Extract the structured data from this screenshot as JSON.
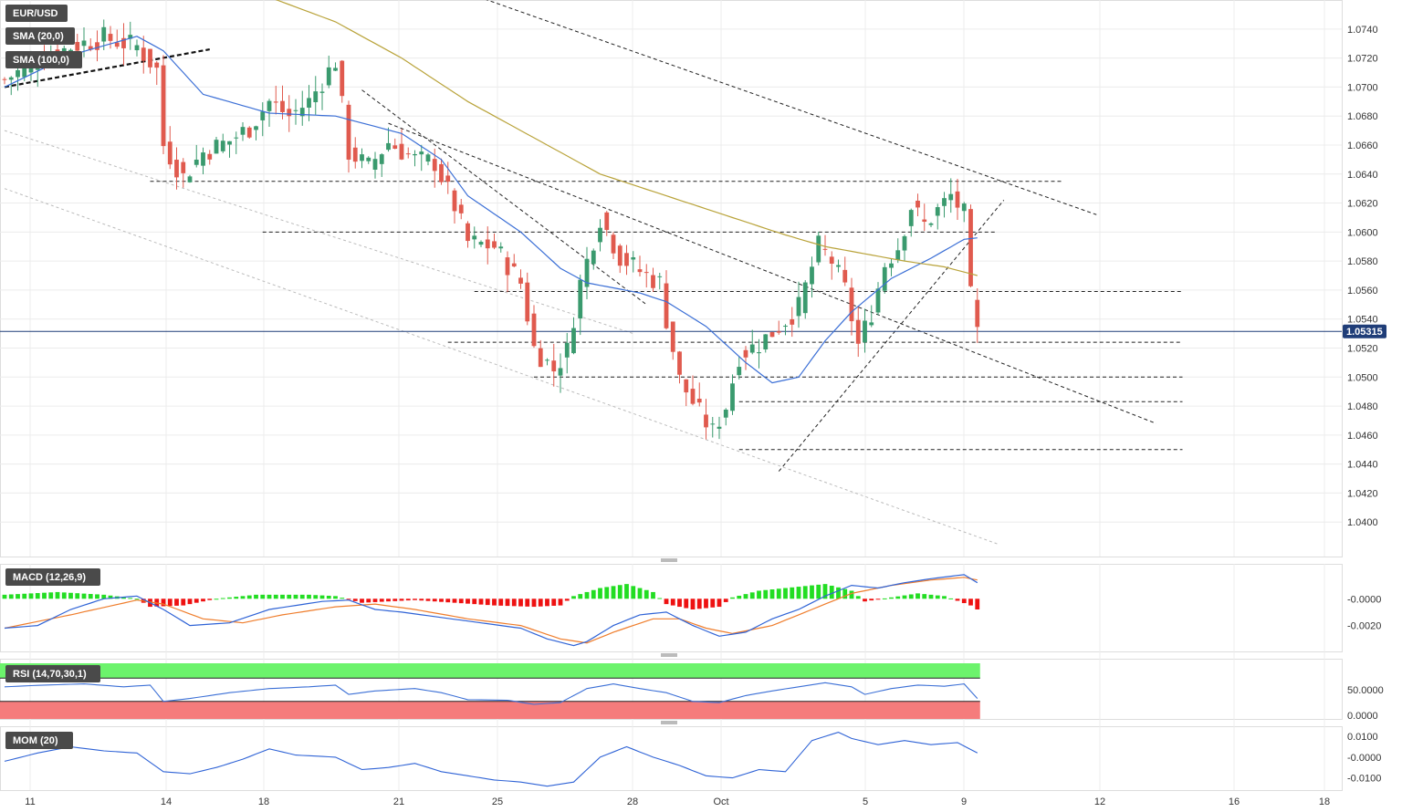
{
  "symbol": "EUR/USD",
  "colors": {
    "bull": "#3a9a6e",
    "bear": "#e05a4e",
    "sma20": "#3b6fd6",
    "sma100": "#b9a33a",
    "macd_line": "#2f63d6",
    "signal_line": "#ef7d2c",
    "hist_pos": "#22dd22",
    "hist_neg": "#ee1111",
    "rsi_line": "#3b6fd6",
    "rsi_over": "#6cf36c",
    "rsi_under": "#f57c7c",
    "mom_line": "#2f63d6",
    "tag_bg": "#4a4a4a",
    "price_tag_bg": "#1f3d78"
  },
  "chart_data": [
    {
      "type": "candlestick",
      "panel": "price",
      "title": "EUR/USD",
      "indicators": [
        "SMA (20,0)",
        "SMA (100,0)"
      ],
      "current_price_label": "1.05315",
      "current_price": 1.05315,
      "ylim": [
        1.038,
        1.0755
      ],
      "y_ticks": [
        "1.0740",
        "1.0720",
        "1.0700",
        "1.0680",
        "1.0660",
        "1.0640",
        "1.0620",
        "1.0600",
        "1.0580",
        "1.0560",
        "1.0540",
        "1.0520",
        "1.0500",
        "1.0480",
        "1.0460",
        "1.0440",
        "1.0420",
        "1.0400"
      ],
      "x_tick_labels": [
        "11",
        "14",
        "18",
        "21",
        "25",
        "28",
        "Oct",
        "5",
        "9",
        "12",
        "16",
        "18"
      ],
      "grid": true,
      "candle_count": 148,
      "price_anchors": [
        [
          0,
          1.0705
        ],
        [
          5,
          1.0718
        ],
        [
          10,
          1.0728
        ],
        [
          15,
          1.0734
        ],
        [
          20,
          1.0728
        ],
        [
          23,
          1.0712
        ],
        [
          24,
          1.066
        ],
        [
          27,
          1.0638
        ],
        [
          30,
          1.0655
        ],
        [
          34,
          1.0663
        ],
        [
          37,
          1.0672
        ],
        [
          40,
          1.069
        ],
        [
          43,
          1.068
        ],
        [
          46,
          1.069
        ],
        [
          50,
          1.0718
        ],
        [
          52,
          1.0655
        ],
        [
          55,
          1.0645
        ],
        [
          58,
          1.0662
        ],
        [
          62,
          1.065
        ],
        [
          65,
          1.0648
        ],
        [
          68,
          1.0618
        ],
        [
          70,
          1.0593
        ],
        [
          74,
          1.059
        ],
        [
          78,
          1.0565
        ],
        [
          80,
          1.052
        ],
        [
          83,
          1.0505
        ],
        [
          85,
          1.0518
        ],
        [
          87,
          1.0565
        ],
        [
          90,
          1.061
        ],
        [
          93,
          1.0583
        ],
        [
          96,
          1.0573
        ],
        [
          99,
          1.0565
        ],
        [
          100,
          1.054
        ],
        [
          102,
          1.0498
        ],
        [
          105,
          1.0475
        ],
        [
          107,
          1.0462
        ],
        [
          109,
          1.048
        ],
        [
          111,
          1.0515
        ],
        [
          114,
          1.0523
        ],
        [
          117,
          1.0535
        ],
        [
          120,
          1.0548
        ],
        [
          123,
          1.059
        ],
        [
          125,
          1.058
        ],
        [
          127,
          1.056
        ],
        [
          129,
          1.0522
        ],
        [
          131,
          1.0545
        ],
        [
          133,
          1.0578
        ],
        [
          135,
          1.059
        ],
        [
          137,
          1.0618
        ],
        [
          139,
          1.0605
        ],
        [
          141,
          1.0615
        ],
        [
          143,
          1.0625
        ],
        [
          145,
          1.0612
        ],
        [
          146,
          1.0555
        ],
        [
          147,
          1.053
        ]
      ],
      "sma20_anchors": [
        [
          0,
          1.07
        ],
        [
          10,
          1.0722
        ],
        [
          20,
          1.0735
        ],
        [
          24,
          1.0725
        ],
        [
          30,
          1.0695
        ],
        [
          40,
          1.0682
        ],
        [
          50,
          1.068
        ],
        [
          60,
          1.0668
        ],
        [
          66,
          1.065
        ],
        [
          70,
          1.0625
        ],
        [
          78,
          1.06
        ],
        [
          84,
          1.0575
        ],
        [
          88,
          1.0565
        ],
        [
          96,
          1.0558
        ],
        [
          100,
          1.0552
        ],
        [
          106,
          1.0535
        ],
        [
          112,
          1.051
        ],
        [
          116,
          1.0496
        ],
        [
          120,
          1.05
        ],
        [
          124,
          1.0525
        ],
        [
          128,
          1.0545
        ],
        [
          134,
          1.0568
        ],
        [
          140,
          1.0582
        ],
        [
          145,
          1.0595
        ],
        [
          147,
          1.0596
        ]
      ],
      "sma100_anchors": [
        [
          40,
          1.0762
        ],
        [
          50,
          1.0745
        ],
        [
          60,
          1.072
        ],
        [
          70,
          1.069
        ],
        [
          80,
          1.0665
        ],
        [
          90,
          1.064
        ],
        [
          100,
          1.0625
        ],
        [
          110,
          1.061
        ],
        [
          118,
          1.0598
        ],
        [
          124,
          1.059
        ],
        [
          130,
          1.0585
        ],
        [
          136,
          1.058
        ],
        [
          142,
          1.0576
        ],
        [
          147,
          1.057
        ]
      ],
      "horizontal_levels": [
        {
          "price": 1.0635,
          "from": 22,
          "to": 160
        },
        {
          "price": 1.06,
          "from": 39,
          "to": 150
        },
        {
          "price": 1.0559,
          "from": 71,
          "to": 178
        },
        {
          "price": 1.0524,
          "from": 67,
          "to": 178
        },
        {
          "price": 1.05,
          "from": 80,
          "to": 178
        },
        {
          "price": 1.0483,
          "from": 111,
          "to": 178
        },
        {
          "price": 1.045,
          "from": 111,
          "to": 178
        }
      ],
      "trend_lines": [
        {
          "x1": 0,
          "y1": 1.07,
          "x2": 31,
          "y2": 1.0726,
          "style": "bold-dashed"
        },
        {
          "x1": 68,
          "y1": 1.0768,
          "x2": 165,
          "y2": 1.0612,
          "style": "dashed"
        },
        {
          "x1": 54,
          "y1": 1.0698,
          "x2": 97,
          "y2": 1.055,
          "style": "dashed"
        },
        {
          "x1": 58,
          "y1": 1.0675,
          "x2": 174,
          "y2": 1.0468,
          "style": "dashed"
        },
        {
          "x1": 117,
          "y1": 1.0435,
          "x2": 151,
          "y2": 1.0622,
          "style": "dashed"
        },
        {
          "x1": 0,
          "y1": 1.067,
          "x2": 95,
          "y2": 1.053,
          "style": "light-dashed"
        },
        {
          "x1": 0,
          "y1": 1.063,
          "x2": 150,
          "y2": 1.0385,
          "style": "light-dashed"
        }
      ]
    },
    {
      "type": "bar+line",
      "panel": "macd",
      "title": "MACD (12,26,9)",
      "y_ticks": [
        "-0.0000",
        "-0.0020"
      ],
      "ylim": [
        -0.0038,
        0.0022
      ],
      "macd_anchors": [
        [
          0,
          -0.0022
        ],
        [
          5,
          -0.002
        ],
        [
          10,
          -0.0008
        ],
        [
          15,
          0.0
        ],
        [
          20,
          0.0002
        ],
        [
          24,
          -0.0008
        ],
        [
          28,
          -0.002
        ],
        [
          34,
          -0.0018
        ],
        [
          40,
          -0.0008
        ],
        [
          48,
          -0.0002
        ],
        [
          52,
          -0.0001
        ],
        [
          56,
          -0.0008
        ],
        [
          60,
          -0.001
        ],
        [
          66,
          -0.0014
        ],
        [
          72,
          -0.0018
        ],
        [
          78,
          -0.0022
        ],
        [
          82,
          -0.003
        ],
        [
          86,
          -0.0035
        ],
        [
          88,
          -0.0032
        ],
        [
          92,
          -0.002
        ],
        [
          96,
          -0.0012
        ],
        [
          100,
          -0.001
        ],
        [
          104,
          -0.002
        ],
        [
          108,
          -0.0028
        ],
        [
          112,
          -0.0025
        ],
        [
          116,
          -0.0015
        ],
        [
          120,
          -0.0008
        ],
        [
          124,
          0.0002
        ],
        [
          128,
          0.001
        ],
        [
          132,
          0.0008
        ],
        [
          136,
          0.0012
        ],
        [
          140,
          0.0015
        ],
        [
          145,
          0.0018
        ],
        [
          147,
          0.0012
        ]
      ],
      "signal_anchors": [
        [
          0,
          -0.0022
        ],
        [
          10,
          -0.0012
        ],
        [
          20,
          -0.0001
        ],
        [
          24,
          -0.0004
        ],
        [
          30,
          -0.0015
        ],
        [
          36,
          -0.0018
        ],
        [
          42,
          -0.0012
        ],
        [
          50,
          -0.0006
        ],
        [
          56,
          -0.0004
        ],
        [
          62,
          -0.0008
        ],
        [
          70,
          -0.0015
        ],
        [
          78,
          -0.002
        ],
        [
          84,
          -0.003
        ],
        [
          88,
          -0.0033
        ],
        [
          92,
          -0.0025
        ],
        [
          98,
          -0.0015
        ],
        [
          102,
          -0.0015
        ],
        [
          106,
          -0.0022
        ],
        [
          110,
          -0.0026
        ],
        [
          116,
          -0.002
        ],
        [
          122,
          -0.0008
        ],
        [
          128,
          0.0004
        ],
        [
          134,
          0.001
        ],
        [
          140,
          0.0014
        ],
        [
          145,
          0.0016
        ],
        [
          147,
          0.0014
        ]
      ],
      "hist_anchors": [
        [
          0,
          0.0003
        ],
        [
          8,
          0.0005
        ],
        [
          15,
          0.0003
        ],
        [
          20,
          0.0
        ],
        [
          22,
          -0.0006
        ],
        [
          27,
          -0.0005
        ],
        [
          32,
          0.0
        ],
        [
          38,
          0.0003
        ],
        [
          46,
          0.0003
        ],
        [
          50,
          0.0002
        ],
        [
          54,
          -0.0003
        ],
        [
          58,
          -0.0002
        ],
        [
          62,
          -0.0001
        ],
        [
          68,
          -0.0003
        ],
        [
          74,
          -0.0005
        ],
        [
          80,
          -0.0006
        ],
        [
          84,
          -0.0005
        ],
        [
          86,
          0.0002
        ],
        [
          90,
          0.0008
        ],
        [
          94,
          0.0011
        ],
        [
          98,
          0.0005
        ],
        [
          100,
          -0.0004
        ],
        [
          104,
          -0.0008
        ],
        [
          108,
          -0.0006
        ],
        [
          110,
          0.0001
        ],
        [
          114,
          0.0006
        ],
        [
          120,
          0.0009
        ],
        [
          124,
          0.0011
        ],
        [
          128,
          0.0006
        ],
        [
          130,
          -0.0002
        ],
        [
          134,
          0.0001
        ],
        [
          138,
          0.0004
        ],
        [
          142,
          0.0002
        ],
        [
          146,
          -0.0005
        ],
        [
          147,
          -0.0008
        ]
      ]
    },
    {
      "type": "line",
      "panel": "rsi",
      "title": "RSI (14,70,30,1)",
      "y_ticks": [
        "50.0000",
        "0.0000"
      ],
      "ylim": [
        0,
        100
      ],
      "overbought": 70,
      "oversold": 30,
      "rsi_anchors": [
        [
          0,
          55
        ],
        [
          6,
          58
        ],
        [
          12,
          60
        ],
        [
          18,
          55
        ],
        [
          22,
          58
        ],
        [
          24,
          30
        ],
        [
          28,
          35
        ],
        [
          34,
          45
        ],
        [
          40,
          52
        ],
        [
          46,
          55
        ],
        [
          50,
          58
        ],
        [
          52,
          42
        ],
        [
          56,
          48
        ],
        [
          62,
          52
        ],
        [
          66,
          45
        ],
        [
          70,
          33
        ],
        [
          76,
          32
        ],
        [
          80,
          25
        ],
        [
          84,
          28
        ],
        [
          88,
          52
        ],
        [
          92,
          60
        ],
        [
          96,
          52
        ],
        [
          100,
          45
        ],
        [
          104,
          30
        ],
        [
          108,
          28
        ],
        [
          112,
          40
        ],
        [
          116,
          48
        ],
        [
          120,
          55
        ],
        [
          124,
          62
        ],
        [
          128,
          55
        ],
        [
          130,
          42
        ],
        [
          134,
          52
        ],
        [
          138,
          58
        ],
        [
          142,
          56
        ],
        [
          145,
          60
        ],
        [
          147,
          35
        ]
      ]
    },
    {
      "type": "line",
      "panel": "momentum",
      "title": "MOM (20)",
      "y_ticks": [
        "0.0100",
        "-0.0000",
        "-0.0100"
      ],
      "ylim": [
        -0.015,
        0.014
      ],
      "mom_anchors": [
        [
          0,
          -0.002
        ],
        [
          5,
          0.002
        ],
        [
          10,
          0.005
        ],
        [
          15,
          0.003
        ],
        [
          20,
          0.002
        ],
        [
          24,
          -0.007
        ],
        [
          28,
          -0.008
        ],
        [
          32,
          -0.005
        ],
        [
          36,
          -0.001
        ],
        [
          40,
          0.004
        ],
        [
          44,
          0.001
        ],
        [
          50,
          0.0
        ],
        [
          54,
          -0.006
        ],
        [
          58,
          -0.005
        ],
        [
          62,
          -0.003
        ],
        [
          66,
          -0.007
        ],
        [
          70,
          -0.009
        ],
        [
          74,
          -0.011
        ],
        [
          78,
          -0.012
        ],
        [
          82,
          -0.014
        ],
        [
          86,
          -0.012
        ],
        [
          90,
          0.0
        ],
        [
          94,
          0.005
        ],
        [
          98,
          0.0
        ],
        [
          102,
          -0.004
        ],
        [
          106,
          -0.009
        ],
        [
          110,
          -0.01
        ],
        [
          114,
          -0.006
        ],
        [
          118,
          -0.007
        ],
        [
          122,
          0.008
        ],
        [
          126,
          0.012
        ],
        [
          128,
          0.009
        ],
        [
          132,
          0.006
        ],
        [
          136,
          0.008
        ],
        [
          140,
          0.006
        ],
        [
          144,
          0.007
        ],
        [
          147,
          0.002
        ]
      ]
    }
  ]
}
